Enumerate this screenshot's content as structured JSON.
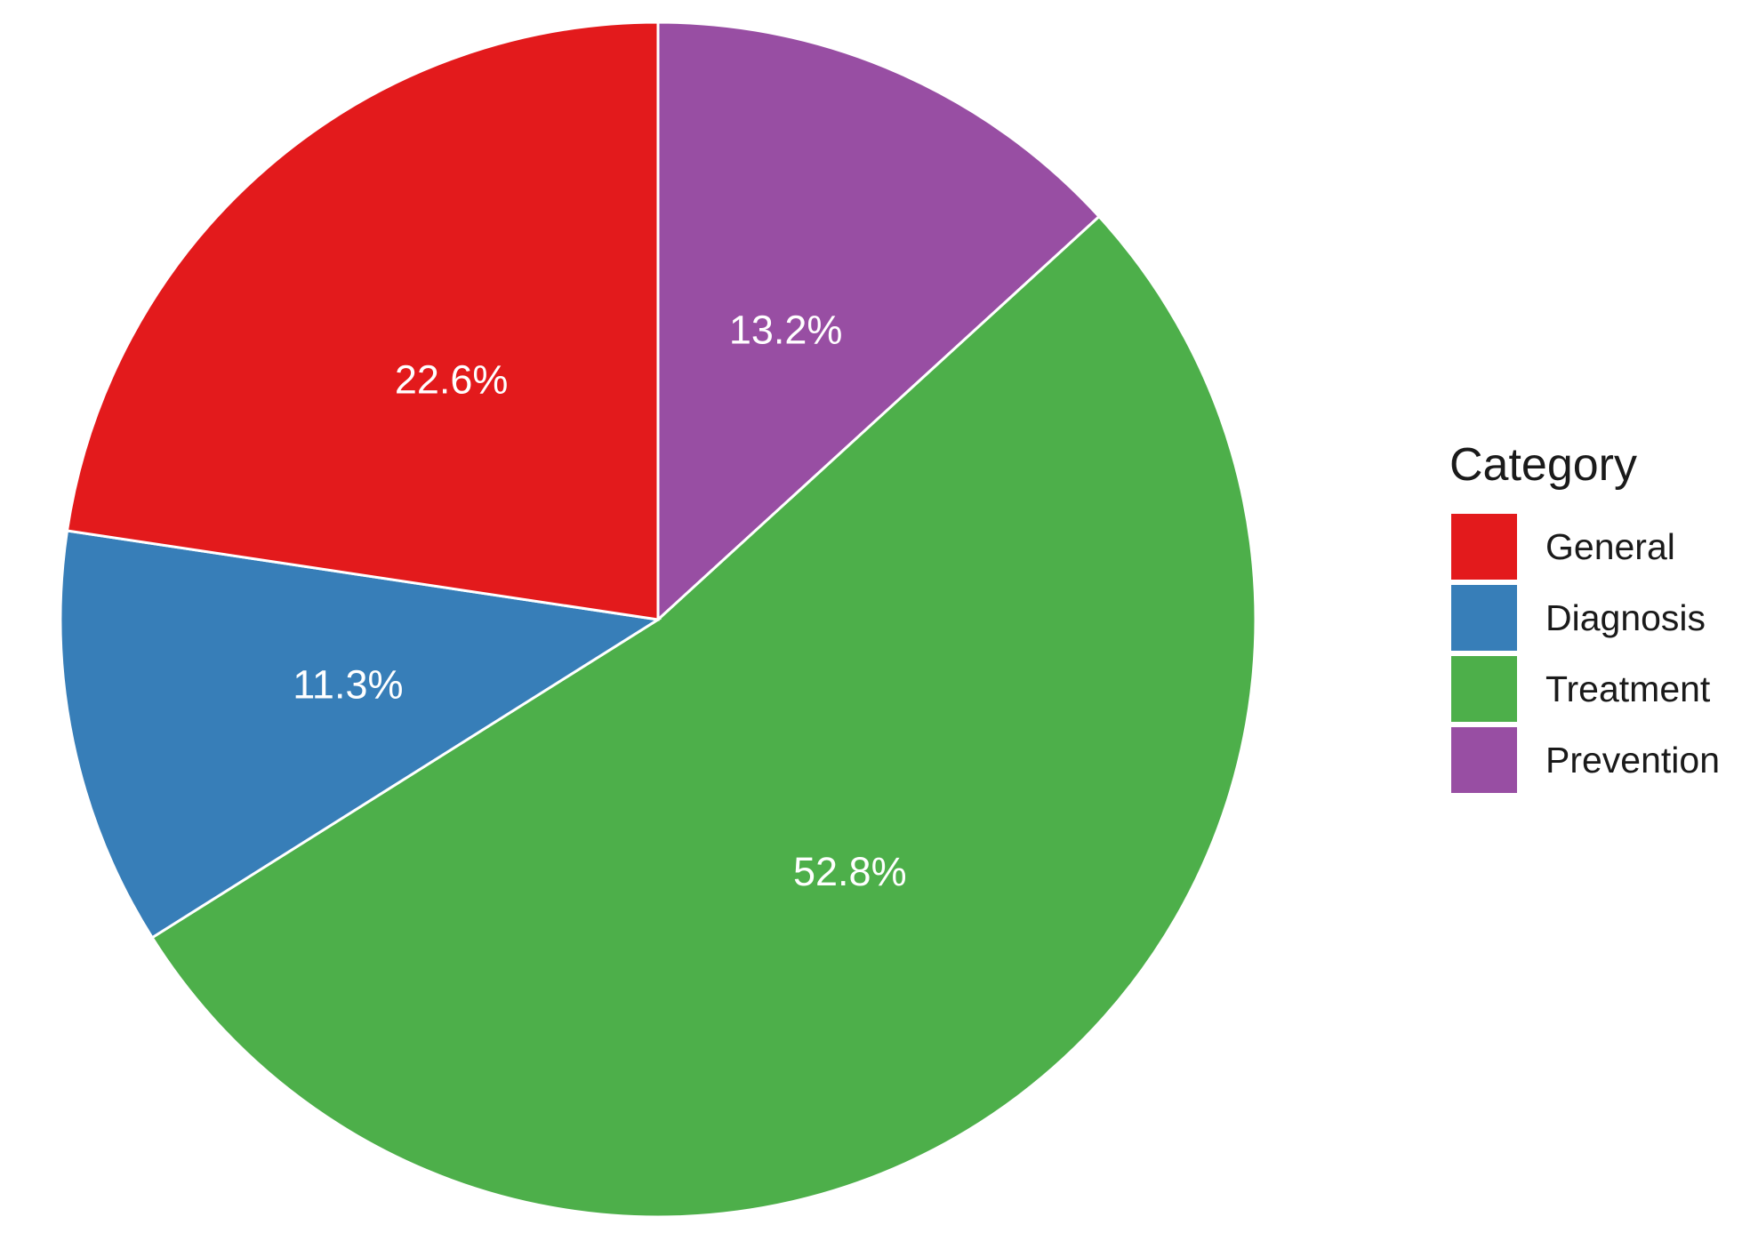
{
  "chart_data": {
    "type": "pie",
    "legend_title": "Category",
    "legend_position": "right",
    "start": "top, clockwise order: Prevention, Treatment, Diagnosis, General",
    "slices": [
      {
        "name": "General",
        "value": 22.6,
        "label": "22.6%",
        "color": "#E31A1C"
      },
      {
        "name": "Diagnosis",
        "value": 11.3,
        "label": "11.3%",
        "color": "#377EB8"
      },
      {
        "name": "Treatment",
        "value": 52.8,
        "label": "52.8%",
        "color": "#4DAF4A"
      },
      {
        "name": "Prevention",
        "value": 13.2,
        "label": "13.2%",
        "color": "#984EA3"
      }
    ]
  }
}
